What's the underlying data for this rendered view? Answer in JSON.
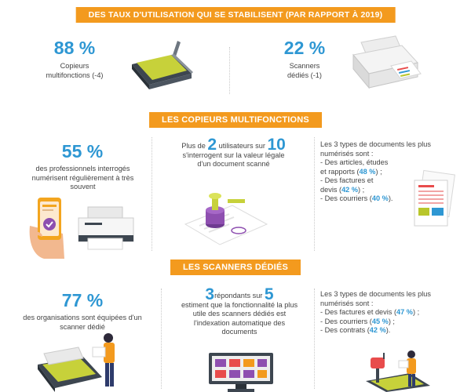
{
  "section1": {
    "banner": "DES TAUX D'UTILISATION QUI SE STABILISENT (PAR RAPPORT À 2019)",
    "left": {
      "stat": "88 %",
      "line1": "Copieurs",
      "line2": "multifonctions (-4)"
    },
    "right": {
      "stat": "22 %",
      "line1": "Scanners",
      "line2": "dédiés (-1)"
    }
  },
  "section2": {
    "banner": "LES COPIEURS MULTIFONCTIONS",
    "col1": {
      "stat": "55 %",
      "line1": "des professionnels interrogés",
      "line2": "numérisent régulièrement à très",
      "line3": "souvent"
    },
    "col2": {
      "pre": "Plus de ",
      "num1": "2",
      "mid": " utilisateurs sur ",
      "num2": "10",
      "line2": "s'interrogent sur la valeur légale",
      "line3": "d'un document scanné"
    },
    "col3": {
      "intro1": "Les 3 types de documents les plus",
      "intro2": "numérisés sont :",
      "i1a": "- Des articles, études",
      "i1b": "et rapports (",
      "i1pct": "48 %",
      "i1c": ") ;",
      "i2a": "- Des factures et",
      "i2b": "devis (",
      "i2pct": "42 %",
      "i2c": ") ;",
      "i3a": "- Des courriers (",
      "i3pct": "40 %",
      "i3c": ")."
    }
  },
  "section3": {
    "banner": "LES SCANNERS DÉDIÉS",
    "col1": {
      "stat": "77 %",
      "line1": "des organisations sont équipées d'un",
      "line2": "scanner dédié"
    },
    "col2": {
      "num1": "3",
      "mid": "répondants sur ",
      "num2": "5",
      "line2": "estiment que la fonctionnalité la plus",
      "line3": "utile des scanners dédiés est",
      "line4": "l'indexation automatique des",
      "line5": "documents"
    },
    "col3": {
      "intro1": "Les 3 types de documents les plus",
      "intro2": "numérisés sont :",
      "i1a": "- Des factures et devis (",
      "i1pct": "47 %",
      "i1c": ") ;",
      "i2a": "- Des courriers (",
      "i2pct": "45 %",
      "i2c": ") ;",
      "i3a": "- Des contrats (",
      "i3pct": "42 %",
      "i3c": ")."
    }
  },
  "colors": {
    "orange": "#f39a1e",
    "blue": "#2e97d3",
    "green": "#b9c62b",
    "text": "#444444"
  }
}
